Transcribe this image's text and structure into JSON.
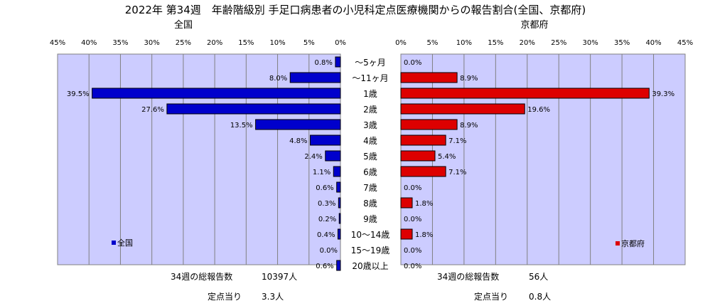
{
  "title": "2022年 第34週　年齢階級別 手足口病患者の小児科定点医療機関からの報告割合(全国、京都府)",
  "colors": {
    "national": "#0000cc",
    "kyoto": "#dd0000",
    "plot_bg": "#ccccff",
    "grid": "#808080"
  },
  "chart_data": [
    {
      "type": "bar",
      "orientation": "horizontal",
      "direction": "right-to-left",
      "subtitle": "全国",
      "categories": [
        "～5ヶ月",
        "～11ヶ月",
        "1歳",
        "2歳",
        "3歳",
        "4歳",
        "5歳",
        "6歳",
        "7歳",
        "8歳",
        "9歳",
        "10～14歳",
        "15～19歳",
        "20歳以上"
      ],
      "series": [
        {
          "name": "全国",
          "values": [
            0.8,
            8.0,
            39.5,
            27.6,
            13.5,
            4.8,
            2.4,
            1.1,
            0.6,
            0.3,
            0.2,
            0.4,
            0.0,
            0.6
          ],
          "value_labels": [
            "0.8%",
            "8.0%",
            "39.5%",
            "27.6%",
            "13.5%",
            "4.8%",
            "2.4%",
            "1.1%",
            "0.6%",
            "0.3%",
            "0.2%",
            "0.4%",
            "0.0%",
            "0.6%"
          ]
        }
      ],
      "xlim": [
        0,
        45
      ],
      "xticks": [
        "45%",
        "40%",
        "35%",
        "30%",
        "25%",
        "20%",
        "15%",
        "10%",
        "5%",
        "0%"
      ],
      "grid": true,
      "legend": "bottom-left",
      "total_label": "34週の総報告数",
      "total_value": "10397人",
      "per_site_label": "定点当り",
      "per_site_value": "3.3人"
    },
    {
      "type": "bar",
      "orientation": "horizontal",
      "direction": "left-to-right",
      "subtitle": "京都府",
      "categories": [
        "～5ヶ月",
        "～11ヶ月",
        "1歳",
        "2歳",
        "3歳",
        "4歳",
        "5歳",
        "6歳",
        "7歳",
        "8歳",
        "9歳",
        "10～14歳",
        "15～19歳",
        "20歳以上"
      ],
      "series": [
        {
          "name": "京都府",
          "values": [
            0.0,
            8.9,
            39.3,
            19.6,
            8.9,
            7.1,
            5.4,
            7.1,
            0.0,
            1.8,
            0.0,
            1.8,
            0.0,
            0.0
          ],
          "value_labels": [
            "0.0%",
            "8.9%",
            "39.3%",
            "19.6%",
            "8.9%",
            "7.1%",
            "5.4%",
            "7.1%",
            "0.0%",
            "1.8%",
            "0.0%",
            "1.8%",
            "0.0%",
            "0.0%"
          ]
        }
      ],
      "xlim": [
        0,
        45
      ],
      "xticks": [
        "0%",
        "5%",
        "10%",
        "15%",
        "20%",
        "25%",
        "30%",
        "35%",
        "40%",
        "45%"
      ],
      "grid": true,
      "legend": "bottom-right",
      "total_label": "34週の総報告数",
      "total_value": "56人",
      "per_site_label": "定点当り",
      "per_site_value": "0.8人"
    }
  ]
}
